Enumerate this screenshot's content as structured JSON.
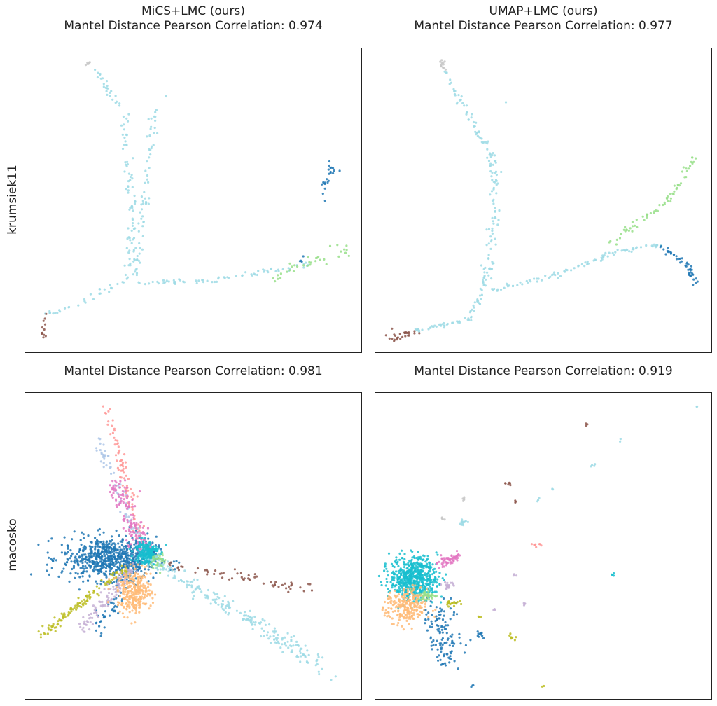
{
  "chart_data": [
    {
      "type": "scatter",
      "row_label": "krumsiek11",
      "title": "MiCS+LMC (ours)",
      "subtitle": "Mantel Distance Pearson Correlation: 0.974",
      "xlim": [
        0,
        1
      ],
      "ylim": [
        0,
        1
      ],
      "grid": false,
      "series": [
        {
          "color": "#9edae5",
          "segments": [
            [
              0.198,
              0.949,
              0.291,
              0.789,
              25,
              0.006
            ],
            [
              0.291,
              0.789,
              0.318,
              0.467,
              45,
              0.008
            ],
            [
              0.318,
              0.467,
              0.312,
              0.248,
              30,
              0.008
            ],
            [
              0.312,
              0.248,
              0.177,
              0.168,
              18,
              0.006
            ],
            [
              0.177,
              0.168,
              0.062,
              0.122,
              14,
              0.005
            ],
            [
              0.385,
              0.789,
              0.353,
              0.467,
              40,
              0.008
            ],
            [
              0.353,
              0.467,
              0.333,
              0.248,
              25,
              0.006
            ],
            [
              0.333,
              0.225,
              0.551,
              0.237,
              28,
              0.004
            ],
            [
              0.551,
              0.237,
              0.738,
              0.271,
              25,
              0.004
            ],
            [
              0.738,
              0.271,
              0.842,
              0.287,
              14,
              0.004
            ]
          ],
          "clusters": [
            [
              0.42,
              0.84,
              0.003,
              0.003,
              1
            ]
          ]
        },
        {
          "color": "#c7c7c7",
          "segments": [
            [
              0.18,
              0.945,
              0.205,
              0.952,
              6,
              0.004
            ]
          ],
          "clusters": []
        },
        {
          "color": "#8c564b",
          "segments": [
            [
              0.062,
              0.122,
              0.048,
              0.041,
              12,
              0.006
            ]
          ],
          "clusters": []
        },
        {
          "color": "#1f77b4",
          "segments": [
            [
              0.925,
              0.651,
              0.879,
              0.501,
              22,
              0.008
            ]
          ],
          "clusters": [
            [
              0.821,
              0.3,
              0.004,
              0.01,
              4
            ]
          ]
        },
        {
          "color": "#98df8a",
          "segments": [
            [
              0.728,
              0.241,
              0.956,
              0.34,
              35,
              0.012
            ]
          ],
          "clusters": []
        }
      ]
    },
    {
      "type": "scatter",
      "title": "UMAP+LMC (ours)",
      "subtitle": "Mantel Distance Pearson Correlation: 0.977",
      "xlim": [
        0,
        1
      ],
      "ylim": [
        0,
        1
      ],
      "grid": false,
      "series": [
        {
          "color": "#9edae5",
          "segments": [
            [
              0.207,
              0.926,
              0.342,
              0.651,
              50,
              0.005
            ],
            [
              0.342,
              0.651,
              0.361,
              0.559,
              25,
              0.008
            ],
            [
              0.361,
              0.559,
              0.328,
              0.237,
              60,
              0.008
            ],
            [
              0.328,
              0.237,
              0.28,
              0.11,
              25,
              0.005
            ],
            [
              0.28,
              0.11,
              0.114,
              0.071,
              35,
              0.004
            ],
            [
              0.342,
              0.202,
              0.55,
              0.26,
              35,
              0.004
            ],
            [
              0.55,
              0.26,
              0.714,
              0.329,
              30,
              0.004
            ],
            [
              0.714,
              0.329,
              0.849,
              0.352,
              25,
              0.003
            ]
          ],
          "clusters": [
            [
              0.39,
              0.82,
              0.003,
              0.003,
              1
            ]
          ]
        },
        {
          "color": "#c7c7c7",
          "segments": [
            [
              0.198,
              0.96,
              0.205,
              0.92,
              12,
              0.004
            ]
          ],
          "clusters": []
        },
        {
          "color": "#98df8a",
          "segments": [
            [
              0.695,
              0.352,
              0.882,
              0.513,
              40,
              0.006
            ],
            [
              0.882,
              0.513,
              0.954,
              0.651,
              25,
              0.006
            ]
          ],
          "clusters": []
        },
        {
          "color": "#1f77b4",
          "segments": [
            [
              0.849,
              0.352,
              0.934,
              0.283,
              25,
              0.005
            ],
            [
              0.934,
              0.283,
              0.95,
              0.225,
              20,
              0.005
            ]
          ],
          "clusters": []
        },
        {
          "color": "#8c564b",
          "segments": [
            [
              0.041,
              0.041,
              0.114,
              0.071,
              30,
              0.008
            ]
          ],
          "clusters": []
        }
      ]
    },
    {
      "type": "scatter",
      "row_label": "macosko",
      "title": "",
      "subtitle": "Mantel Distance Pearson Correlation: 0.981",
      "xlim": [
        0,
        1
      ],
      "ylim": [
        0,
        1
      ],
      "grid": false,
      "series": [
        {
          "color": "#1f77b4",
          "segments": [
            [
              0.353,
              0.475,
              0.218,
              0.224,
              80,
              0.012
            ]
          ],
          "clusters": [
            [
              0.25,
              0.46,
              0.07,
              0.035,
              700
            ]
          ]
        },
        {
          "color": "#ff9896",
          "segments": [
            [
              0.353,
              0.475,
              0.243,
              0.959,
              90,
              0.008
            ]
          ],
          "clusters": []
        },
        {
          "color": "#aec7e8",
          "segments": [
            [
              0.353,
              0.475,
              0.208,
              0.863,
              70,
              0.008
            ]
          ],
          "clusters": []
        },
        {
          "color": "#e377c2",
          "segments": [
            [
              0.353,
              0.475,
              0.27,
              0.703,
              150,
              0.015
            ]
          ],
          "clusters": []
        },
        {
          "color": "#bcbd22",
          "segments": [
            [
              0.3,
              0.43,
              0.042,
              0.201,
              120,
              0.008
            ]
          ],
          "clusters": []
        },
        {
          "color": "#c5b0d5",
          "segments": [
            [
              0.32,
              0.43,
              0.166,
              0.224,
              100,
              0.01
            ]
          ],
          "clusters": []
        },
        {
          "color": "#ffbb78",
          "segments": [],
          "clusters": [
            [
              0.325,
              0.35,
              0.025,
              0.035,
              300
            ]
          ]
        },
        {
          "color": "#17becf",
          "segments": [],
          "clusters": [
            [
              0.36,
              0.48,
              0.018,
              0.02,
              200
            ]
          ]
        },
        {
          "color": "#98df8a",
          "segments": [],
          "clusters": [
            [
              0.395,
              0.45,
              0.01,
              0.015,
              40
            ]
          ]
        },
        {
          "color": "#8c564b",
          "segments": [
            [
              0.42,
              0.44,
              0.842,
              0.361,
              60,
              0.008
            ]
          ],
          "clusters": []
        },
        {
          "color": "#9edae5",
          "segments": [
            [
              0.38,
              0.45,
              0.873,
              0.121,
              200,
              0.012
            ],
            [
              0.6,
              0.3,
              0.956,
              0.041,
              20,
              0.01
            ]
          ],
          "clusters": []
        }
      ]
    },
    {
      "type": "scatter",
      "title": "",
      "subtitle": "Mantel Distance Pearson Correlation: 0.919",
      "xlim": [
        0,
        1
      ],
      "ylim": [
        0,
        1
      ],
      "grid": false,
      "series": [
        {
          "color": "#17becf",
          "segments": [],
          "clusters": [
            [
              0.114,
              0.395,
              0.035,
              0.035,
              600
            ],
            [
              0.711,
              0.406,
              0.004,
              0.004,
              4
            ]
          ]
        },
        {
          "color": "#ffbb78",
          "segments": [],
          "clusters": [
            [
              0.093,
              0.3,
              0.03,
              0.03,
              250
            ]
          ]
        },
        {
          "color": "#1f77b4",
          "segments": [
            [
              0.187,
              0.3,
              0.218,
              0.11,
              120,
              0.025
            ]
          ],
          "clusters": [
            [
              0.311,
              0.212,
              0.008,
              0.008,
              10
            ],
            [
              0.29,
              0.046,
              0.004,
              0.004,
              3
            ]
          ]
        },
        {
          "color": "#e377c2",
          "segments": [
            [
              0.19,
              0.44,
              0.25,
              0.47,
              60,
              0.008
            ]
          ],
          "clusters": []
        },
        {
          "color": "#98df8a",
          "segments": [],
          "clusters": [
            [
              0.156,
              0.338,
              0.015,
              0.008,
              40
            ]
          ]
        },
        {
          "color": "#bcbd22",
          "segments": [],
          "clusters": [
            [
              0.228,
              0.315,
              0.01,
              0.006,
              20
            ],
            [
              0.311,
              0.269,
              0.003,
              0.003,
              3
            ],
            [
              0.405,
              0.201,
              0.006,
              0.005,
              8
            ],
            [
              0.498,
              0.041,
              0.003,
              0.003,
              2
            ]
          ]
        },
        {
          "color": "#c5b0d5",
          "segments": [],
          "clusters": [
            [
              0.218,
              0.372,
              0.01,
              0.005,
              20
            ],
            [
              0.415,
              0.406,
              0.003,
              0.003,
              3
            ],
            [
              0.353,
              0.292,
              0.003,
              0.003,
              3
            ],
            [
              0.442,
              0.311,
              0.004,
              0.003,
              4
            ]
          ]
        },
        {
          "color": "#8c564b",
          "segments": [],
          "clusters": [
            [
              0.631,
              0.893,
              0.003,
              0.003,
              3
            ],
            [
              0.394,
              0.703,
              0.005,
              0.004,
              6
            ],
            [
              0.415,
              0.646,
              0.003,
              0.003,
              3
            ]
          ]
        },
        {
          "color": "#c7c7c7",
          "segments": [],
          "clusters": [
            [
              0.201,
              0.589,
              0.004,
              0.004,
              5
            ],
            [
              0.262,
              0.653,
              0.004,
              0.004,
              5
            ]
          ]
        },
        {
          "color": "#9edae5",
          "segments": [],
          "clusters": [
            [
              0.259,
              0.578,
              0.008,
              0.006,
              15
            ],
            [
              0.487,
              0.653,
              0.003,
              0.003,
              3
            ],
            [
              0.954,
              0.954,
              0.003,
              0.003,
              2
            ],
            [
              0.726,
              0.845,
              0.003,
              0.003,
              2
            ],
            [
              0.649,
              0.767,
              0.004,
              0.004,
              4
            ],
            [
              0.529,
              0.687,
              0.003,
              0.003,
              2
            ]
          ]
        },
        {
          "color": "#ff9896",
          "segments": [],
          "clusters": [
            [
              0.478,
              0.502,
              0.006,
              0.006,
              8
            ]
          ]
        }
      ]
    }
  ]
}
